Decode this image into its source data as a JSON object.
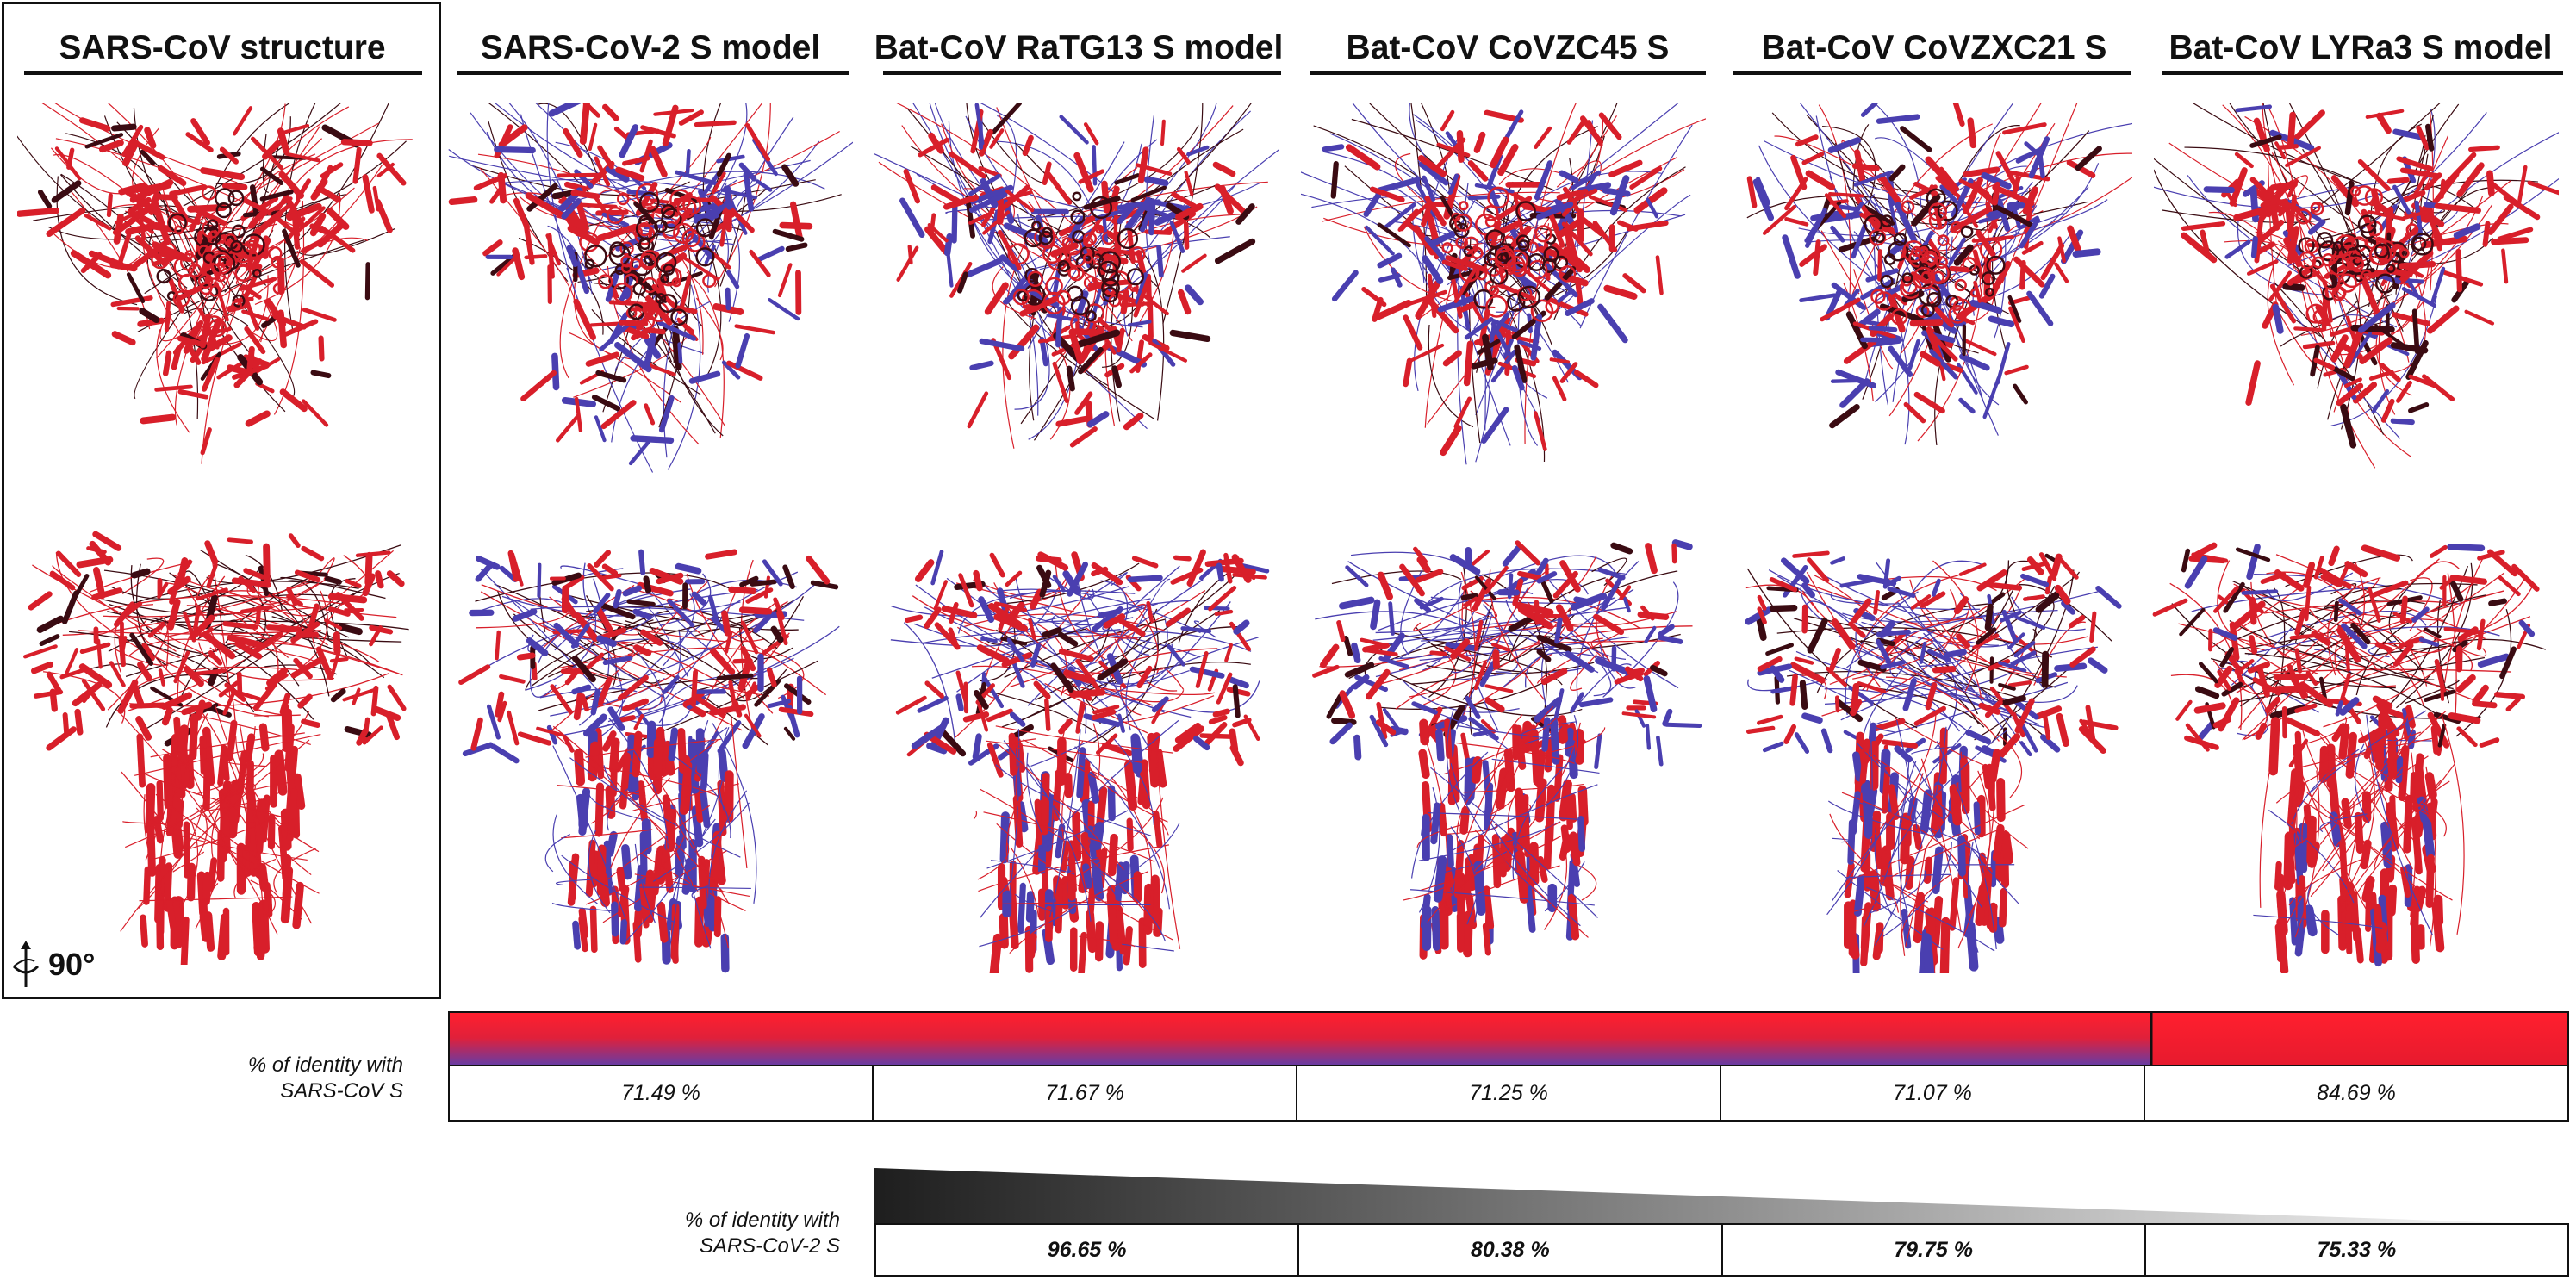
{
  "columns": [
    {
      "title": "SARS-CoV structure",
      "blue": 0.0
    },
    {
      "title": "SARS-CoV-2 S model",
      "blue": 0.34
    },
    {
      "title": "Bat-CoV RaTG13 S model",
      "blue": 0.3
    },
    {
      "title": "Bat-CoV CoVZC45 S",
      "blue": 0.36
    },
    {
      "title": "Bat-CoV CoVZXC21 S",
      "blue": 0.34
    },
    {
      "title": "Bat-CoV LYRa3 S model",
      "blue": 0.14
    }
  ],
  "rotation_label": "90°",
  "sars_identity": {
    "label_line1": "% of identity with",
    "label_line2": "SARS-CoV S",
    "values": [
      "71.49 %",
      "71.67 %",
      "71.25 %",
      "71.07 %",
      "84.69 %"
    ]
  },
  "sars2_identity": {
    "label_line1": "% of identity with",
    "label_line2": "SARS-CoV-2 S",
    "values": [
      "96.65 %",
      "80.38 %",
      "79.75 %",
      "75.33 %"
    ]
  },
  "colors": {
    "identical": "#d81f2a",
    "different": "#4a3fb0",
    "dark": "#3a0b12",
    "gray_start": "#1e1e1e",
    "gray_end": "#ffffff"
  }
}
